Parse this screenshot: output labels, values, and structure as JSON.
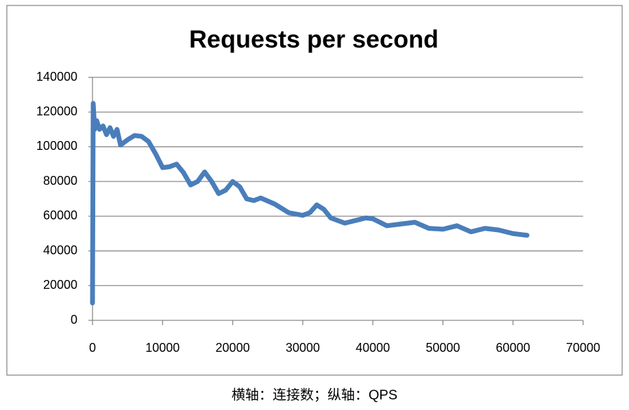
{
  "chart_data": {
    "type": "line",
    "title": "Requests per second",
    "caption": "横轴：连接数；纵轴：QPS",
    "x": [
      0,
      100,
      300,
      600,
      1000,
      1500,
      2000,
      2500,
      3000,
      3500,
      4000,
      5000,
      6000,
      7000,
      8000,
      9000,
      10000,
      11000,
      12000,
      13000,
      14000,
      15000,
      16000,
      17000,
      18000,
      19000,
      20000,
      21000,
      22000,
      23000,
      24000,
      26000,
      28000,
      30000,
      31000,
      32000,
      33000,
      34000,
      36000,
      38000,
      39000,
      40000,
      42000,
      44000,
      46000,
      48000,
      50000,
      52000,
      54000,
      56000,
      58000,
      60000,
      62000
    ],
    "series": [
      {
        "name": "Requests per second",
        "color": "#4a7ebb",
        "values": [
          10000,
          125000,
          110000,
          115000,
          110000,
          112000,
          107000,
          111000,
          106000,
          110000,
          101000,
          104000,
          106500,
          106000,
          103000,
          96000,
          88000,
          88500,
          90000,
          85000,
          78000,
          80000,
          85500,
          80000,
          73000,
          75000,
          80000,
          77000,
          70000,
          69000,
          70500,
          67000,
          62000,
          60500,
          62000,
          66500,
          64000,
          59000,
          56000,
          58000,
          59000,
          58500,
          54500,
          55500,
          56500,
          53000,
          52500,
          54500,
          51000,
          53000,
          52000,
          50000,
          49000
        ]
      }
    ],
    "xlim": [
      0,
      70000
    ],
    "xticks": [
      0,
      10000,
      20000,
      30000,
      40000,
      50000,
      60000,
      70000
    ],
    "ylim": [
      0,
      140000
    ],
    "yticks": [
      0,
      20000,
      40000,
      60000,
      80000,
      100000,
      120000,
      140000
    ],
    "grid": true
  }
}
